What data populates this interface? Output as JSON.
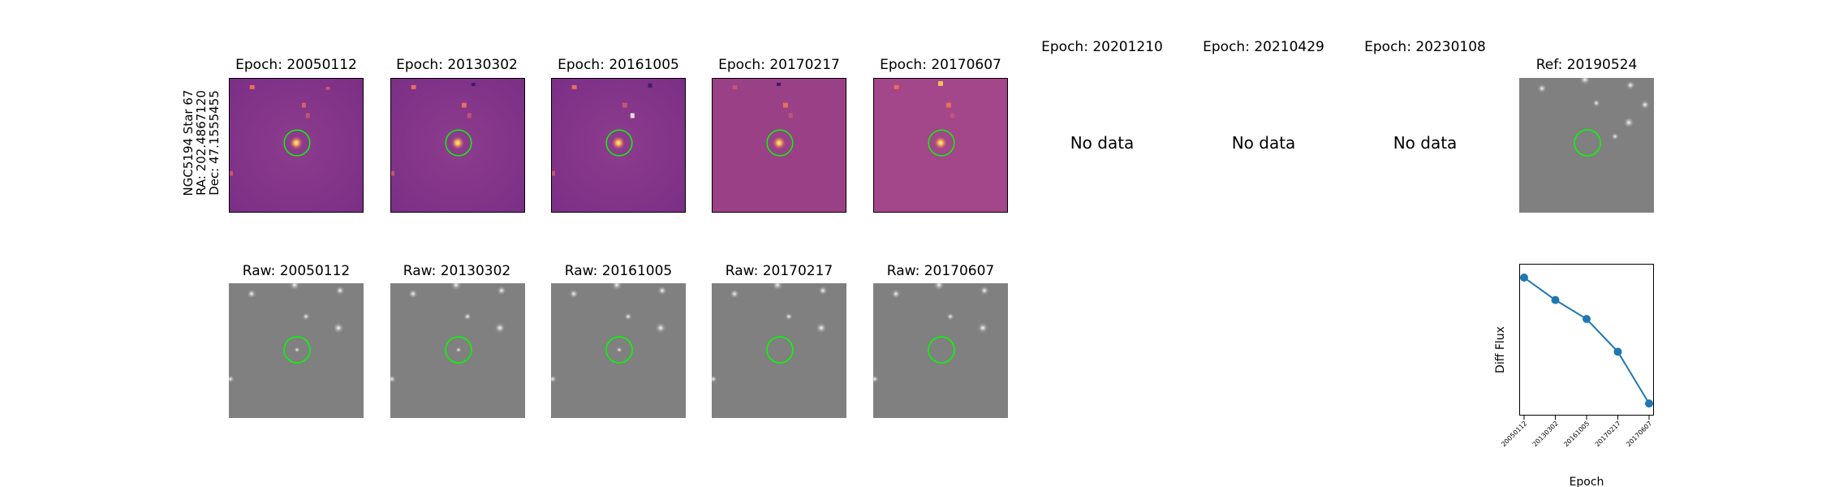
{
  "star_label": {
    "line1": "NGC5194 Star 67",
    "line2": "RA: 202.4867120",
    "line3": "Dec: 47.1555455"
  },
  "epochs": [
    {
      "diff_title": "Epoch: 20050112",
      "raw_title": "Raw: 20050112",
      "has_data": true
    },
    {
      "diff_title": "Epoch: 20130302",
      "raw_title": "Raw: 20130302",
      "has_data": true
    },
    {
      "diff_title": "Epoch: 20161005",
      "raw_title": "Raw: 20161005",
      "has_data": true
    },
    {
      "diff_title": "Epoch: 20170217",
      "raw_title": "Raw: 20170217",
      "has_data": true
    },
    {
      "diff_title": "Epoch: 20170607",
      "raw_title": "Raw: 20170607",
      "has_data": true
    },
    {
      "diff_title": "Epoch: 20201210",
      "has_data": false,
      "no_data_text": "No data"
    },
    {
      "diff_title": "Epoch: 20210429",
      "has_data": false,
      "no_data_text": "No data"
    },
    {
      "diff_title": "Epoch: 20230108",
      "has_data": false,
      "no_data_text": "No data"
    }
  ],
  "reference": {
    "title": "Ref: 20190524"
  },
  "colors": {
    "aperture_circle": "#00ff00",
    "diff_background": "#8a3b8c",
    "raw_background": "#808080",
    "line_series": "#1f77b4"
  },
  "chart_data": {
    "type": "line",
    "title": "",
    "xlabel": "Epoch",
    "ylabel": "Diff Flux",
    "categories": [
      "20050112",
      "20130302",
      "20161005",
      "20170217",
      "20170607"
    ],
    "series": [
      {
        "values": [
          0.95,
          0.82,
          0.71,
          0.52,
          0.22
        ]
      }
    ],
    "ylim": [
      0.15,
      1.03
    ],
    "y_ticks_shown": false,
    "grid": false,
    "marker": "circle"
  }
}
